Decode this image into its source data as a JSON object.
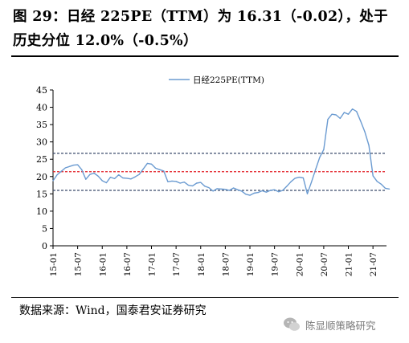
{
  "header": {
    "title_line1": "图 29：日经 225PE（TTM）为 16.31（-0.02），处于",
    "title_line2": "历史分位 12.0%（-0.5%）"
  },
  "footer": {
    "source": "数据来源：Wind，国泰君安证券研究",
    "watermark": "陈显顺策略研究"
  },
  "chart_data": {
    "type": "line",
    "title": "",
    "xlabel": "",
    "ylabel": "",
    "ylim": [
      0,
      45
    ],
    "yticks": [
      0,
      5,
      10,
      15,
      20,
      25,
      30,
      35,
      40,
      45
    ],
    "xticks": [
      "15-01",
      "15-07",
      "16-01",
      "16-07",
      "17-01",
      "17-07",
      "18-01",
      "18-07",
      "19-01",
      "19-07",
      "20-01",
      "20-07",
      "21-01",
      "21-07"
    ],
    "legend": "top-center",
    "grid": false,
    "series": [
      {
        "name": "日经225PE(TTM)",
        "color": "#6b9bd1",
        "points": [
          [
            "15-01",
            18.8
          ],
          [
            "15-02",
            20.5
          ],
          [
            "15-03",
            21.5
          ],
          [
            "15-04",
            22.5
          ],
          [
            "15-05",
            22.9
          ],
          [
            "15-06",
            23.3
          ],
          [
            "15-07",
            23.4
          ],
          [
            "15-08",
            22.0
          ],
          [
            "15-09",
            19.2
          ],
          [
            "15-10",
            20.6
          ],
          [
            "15-11",
            21.0
          ],
          [
            "15-12",
            20.1
          ],
          [
            "16-01",
            18.8
          ],
          [
            "16-02",
            18.2
          ],
          [
            "16-03",
            19.8
          ],
          [
            "16-04",
            19.4
          ],
          [
            "16-05",
            20.5
          ],
          [
            "16-06",
            19.6
          ],
          [
            "16-07",
            19.5
          ],
          [
            "16-08",
            19.3
          ],
          [
            "16-09",
            19.9
          ],
          [
            "16-10",
            20.6
          ],
          [
            "16-11",
            22.2
          ],
          [
            "16-12",
            23.8
          ],
          [
            "17-01",
            23.6
          ],
          [
            "17-02",
            22.4
          ],
          [
            "17-03",
            22.0
          ],
          [
            "17-04",
            21.6
          ],
          [
            "17-05",
            18.5
          ],
          [
            "17-06",
            18.7
          ],
          [
            "17-07",
            18.6
          ],
          [
            "17-08",
            18.1
          ],
          [
            "17-09",
            18.4
          ],
          [
            "17-10",
            17.5
          ],
          [
            "17-11",
            17.3
          ],
          [
            "17-12",
            18.1
          ],
          [
            "18-01",
            18.3
          ],
          [
            "18-02",
            17.2
          ],
          [
            "18-03",
            16.8
          ],
          [
            "18-04",
            15.8
          ],
          [
            "18-05",
            16.5
          ],
          [
            "18-06",
            16.4
          ],
          [
            "18-07",
            16.3
          ],
          [
            "18-08",
            16.0
          ],
          [
            "18-09",
            16.7
          ],
          [
            "18-10",
            16.2
          ],
          [
            "18-11",
            15.8
          ],
          [
            "18-12",
            14.9
          ],
          [
            "19-01",
            14.6
          ],
          [
            "19-02",
            15.2
          ],
          [
            "19-03",
            15.4
          ],
          [
            "19-04",
            15.9
          ],
          [
            "19-05",
            15.5
          ],
          [
            "19-06",
            16.0
          ],
          [
            "19-07",
            16.2
          ],
          [
            "19-08",
            15.6
          ],
          [
            "19-09",
            16.0
          ],
          [
            "19-10",
            17.2
          ],
          [
            "19-11",
            18.5
          ],
          [
            "19-12",
            19.5
          ],
          [
            "20-01",
            19.8
          ],
          [
            "20-02",
            19.6
          ],
          [
            "20-03",
            15.0
          ],
          [
            "20-04",
            18.4
          ],
          [
            "20-05",
            22.0
          ],
          [
            "20-06",
            25.5
          ],
          [
            "20-07",
            27.8
          ],
          [
            "20-08",
            36.5
          ],
          [
            "20-09",
            38.0
          ],
          [
            "20-10",
            37.8
          ],
          [
            "20-11",
            36.8
          ],
          [
            "20-12",
            38.5
          ],
          [
            "21-01",
            38.0
          ],
          [
            "21-02",
            39.5
          ],
          [
            "21-03",
            38.8
          ],
          [
            "21-04",
            36.0
          ],
          [
            "21-05",
            33.0
          ],
          [
            "21-06",
            29.0
          ],
          [
            "21-07",
            20.2
          ],
          [
            "21-08",
            18.6
          ],
          [
            "21-09",
            17.8
          ],
          [
            "21-10",
            16.6
          ],
          [
            "21-11",
            16.4
          ]
        ]
      }
    ],
    "reference_lines": [
      {
        "value": 26.7,
        "color": "#3a4a6b",
        "style": "dashed"
      },
      {
        "value": 21.4,
        "color": "#e21f26",
        "style": "dashed"
      },
      {
        "value": 16.0,
        "color": "#3a4a6b",
        "style": "dashed"
      }
    ]
  }
}
